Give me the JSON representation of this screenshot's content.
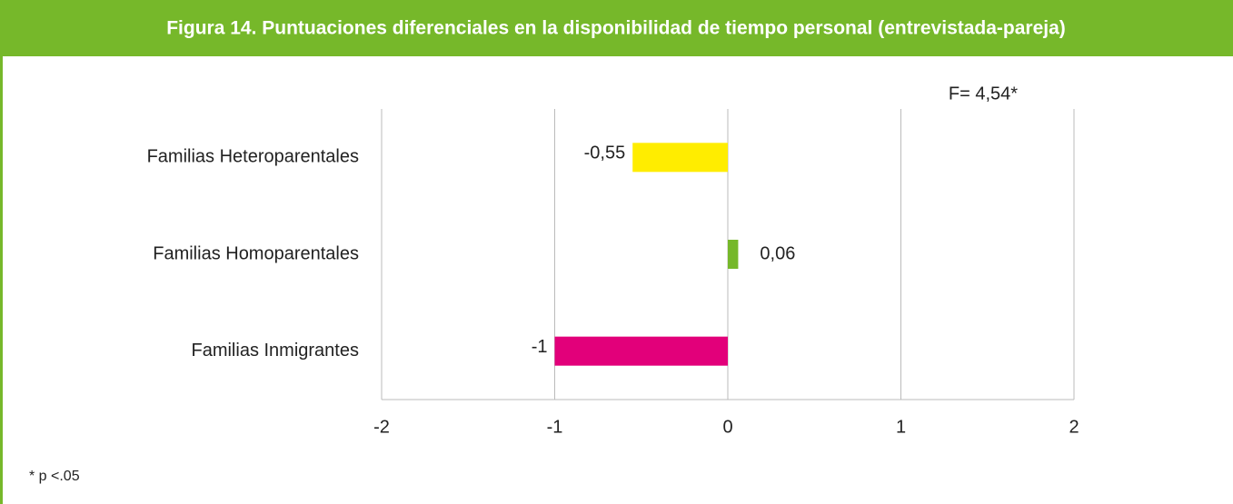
{
  "chart_data": {
    "type": "barh",
    "title": "Figura 14. Puntuaciones diferenciales en la disponibilidad de tiempo personal (entrevistada-pareja)",
    "annotation": "F= 4,54*",
    "footnote": "* p <.05",
    "categories": [
      "Familias Heteroparentales",
      "Familias Homoparentales",
      "Familias Inmigrantes"
    ],
    "values": [
      -0.55,
      0.06,
      -1
    ],
    "value_labels": [
      "-0,55",
      "0,06",
      "-1"
    ],
    "colors": [
      "#ffed00",
      "#76b82a",
      "#e2007a"
    ],
    "xlim": [
      -2,
      2
    ],
    "xticks": [
      -2,
      -1,
      0,
      1,
      2
    ],
    "grid": true,
    "header_color": "#76b82a"
  }
}
